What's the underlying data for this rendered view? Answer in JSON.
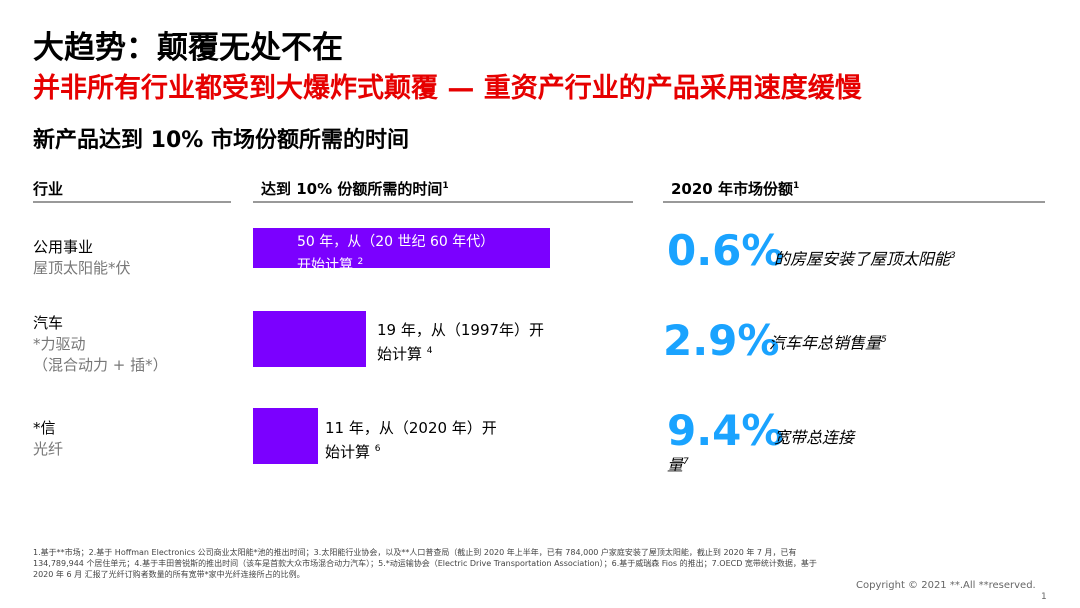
{
  "header": {
    "title": "大趋势：颠覆无处不在",
    "subtitle": "并非所有行业都受到大爆炸式颠覆 — 重资产行业的产品采用速度缓慢",
    "section_title": "新产品达到 10% 市场份额所需的时间"
  },
  "columns": {
    "industry": "行业",
    "time": "达到 10% 份额所需的时间",
    "time_sup": "1",
    "share": "2020 年市场份额",
    "share_sup": "1"
  },
  "chart_data": {
    "type": "bar",
    "orientation": "horizontal",
    "title": "新产品达到 10% 市场份额所需的时间",
    "unit": "年",
    "categories": [
      "公用事业 屋顶太阳能*伏",
      "汽车 *力驱动（混合动力 + 插*）",
      "*信 光纤"
    ],
    "values": [
      50,
      19,
      11
    ]
  },
  "rows": [
    {
      "industry": "公用事业",
      "product_lines": [
        "屋顶太阳能*伏"
      ],
      "years": 50,
      "time_label": "50 年，从（20 世纪 60 年代）开始计算",
      "time_sup": "2",
      "share_pct": "0.6%",
      "share_desc": "的房屋安装了屋顶太阳能",
      "share_sup": "3"
    },
    {
      "industry": "汽车",
      "product_lines": [
        "*力驱动",
        "（混合动力 + 插*）"
      ],
      "years": 19,
      "time_label": "19 年，从（1997年）开始计算",
      "time_sup": "4",
      "share_pct": "2.9%",
      "share_desc": "汽车年总销售量",
      "share_sup": "5"
    },
    {
      "industry": "*信",
      "product_lines": [
        "光纤"
      ],
      "years": 11,
      "time_label": "11 年，从（2020 年）开始计算",
      "time_sup": "6",
      "share_pct": "9.4%",
      "share_desc": "宽带总连接量",
      "share_sup": "7"
    }
  ],
  "footnotes": "1.基于**市场；2.基于 Hoffman Electronics 公司商业太阳能*池的推出时间；3.太阳能行业协会，以及**人口普查局（截止到 2020 年上半年，已有 784,000 户家庭安装了屋顶太阳能，截止到 2020 年 7 月，已有 134,789,944 个居住单元；4.基于丰田普锐斯的推出时间（该车是首款大众市场混合动力汽车）；5.*动运输协会（Electric Drive Transportation Association）；6.基于威瑞森 Fios 的推出；7.OECD 宽带统计数据，基于 2020 年 6 月 汇报了光纤订购者数量的所有宽带*家中光纤连接所占的比例。",
  "copyright": "Copyright © 2021 **.All **reserved.",
  "page_number": "1",
  "colors": {
    "bar": "#7b00ff",
    "accent_red": "#e60000",
    "pct_blue": "#1aa3ff"
  }
}
